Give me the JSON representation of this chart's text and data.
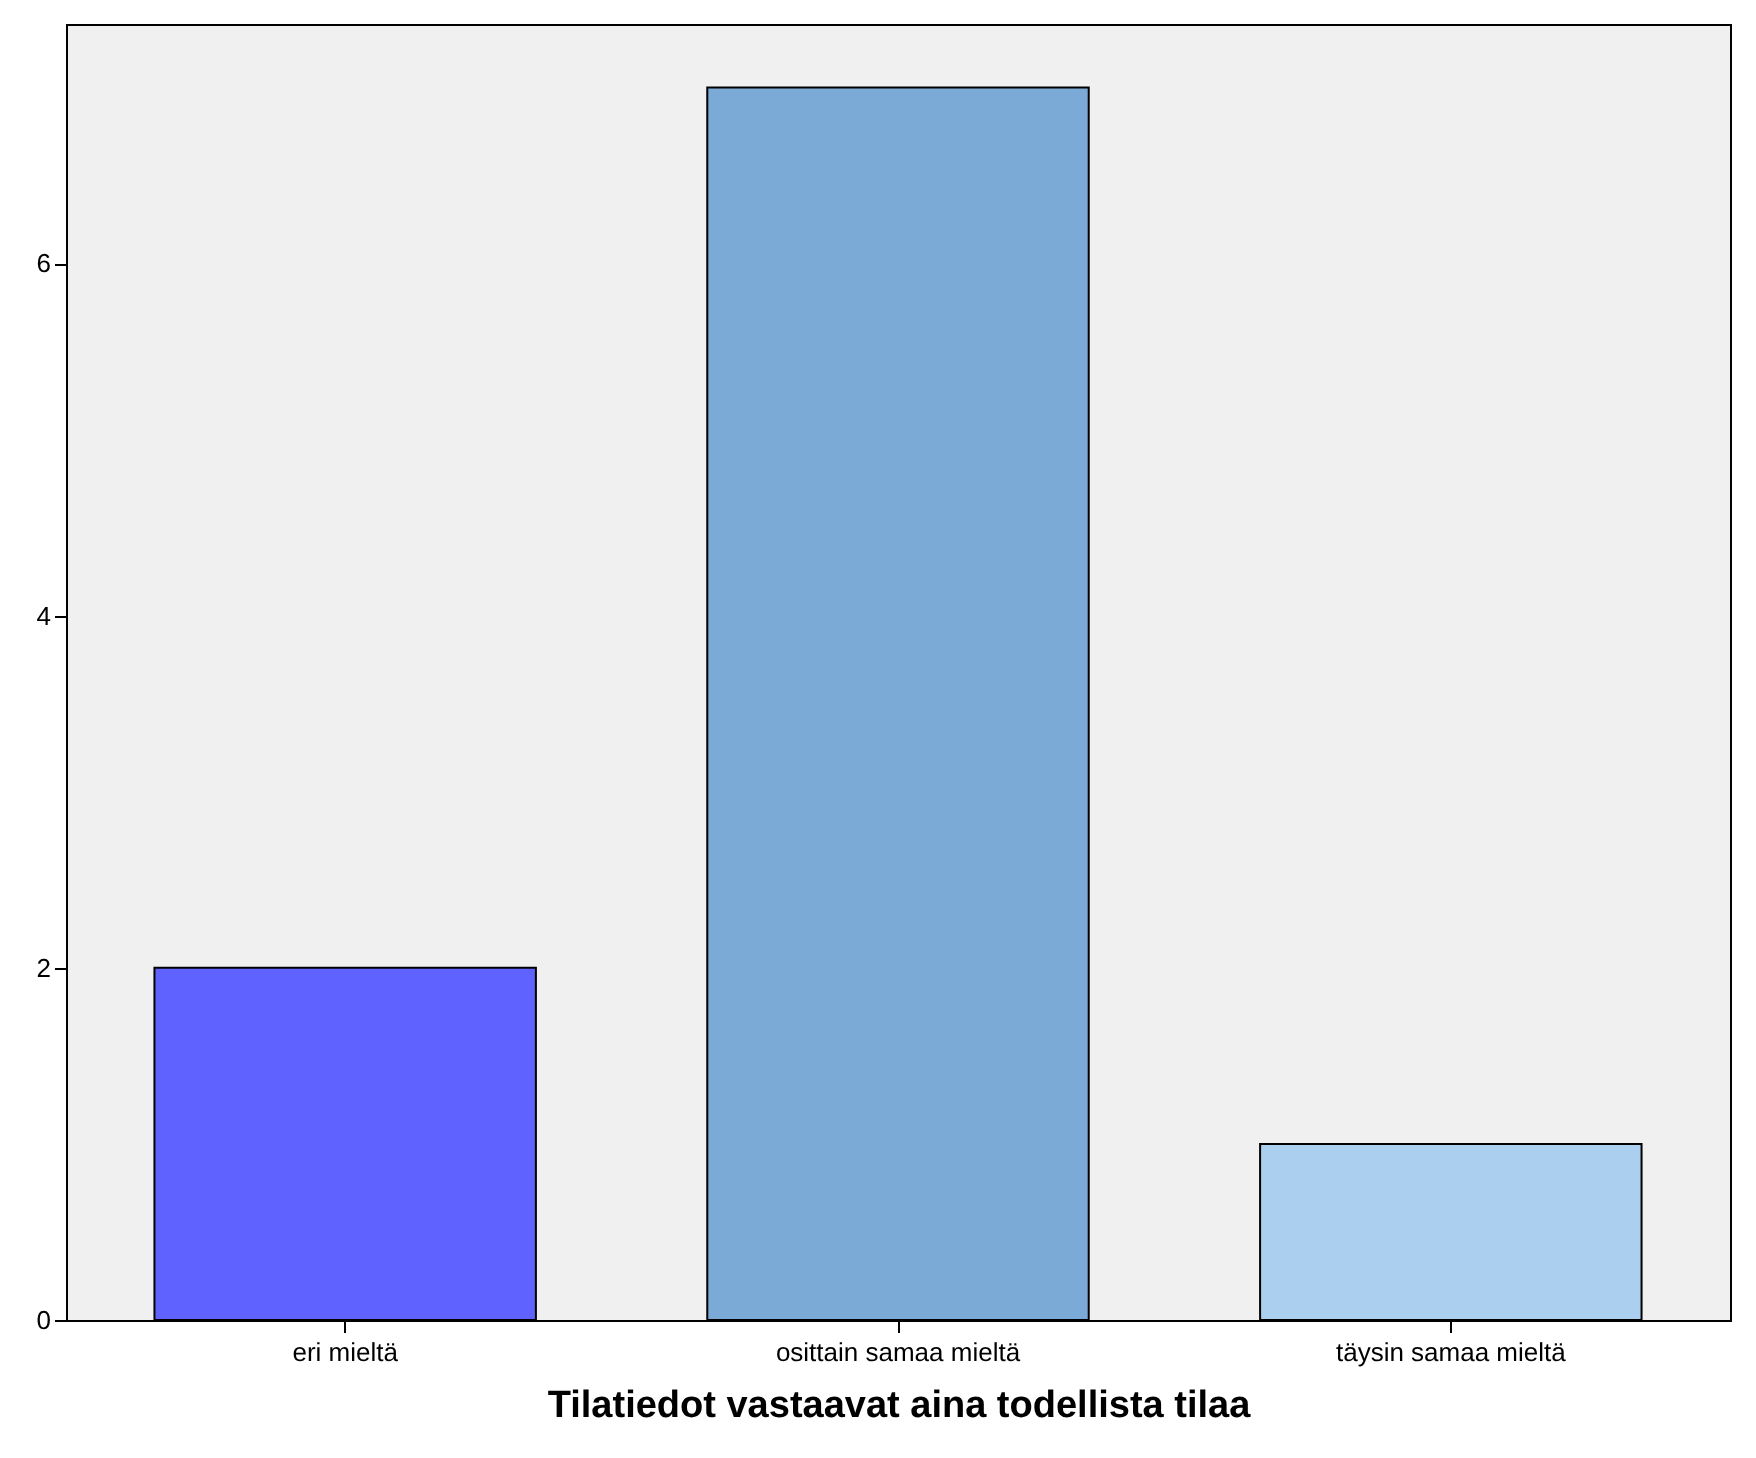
{
  "chart_data": {
    "type": "bar",
    "xlabel": "Tilatiedot vastaavat aina todellista tilaa",
    "categories": [
      "eri mieltä",
      "osittain samaa mieltä",
      "täysin samaa mieltä"
    ],
    "values": [
      2,
      7,
      1
    ],
    "colors": [
      "#5f62ff",
      "#7baad6",
      "#abcfee"
    ],
    "ylim": [
      0,
      7.36
    ],
    "yticks": [
      0,
      2,
      4,
      6
    ]
  }
}
